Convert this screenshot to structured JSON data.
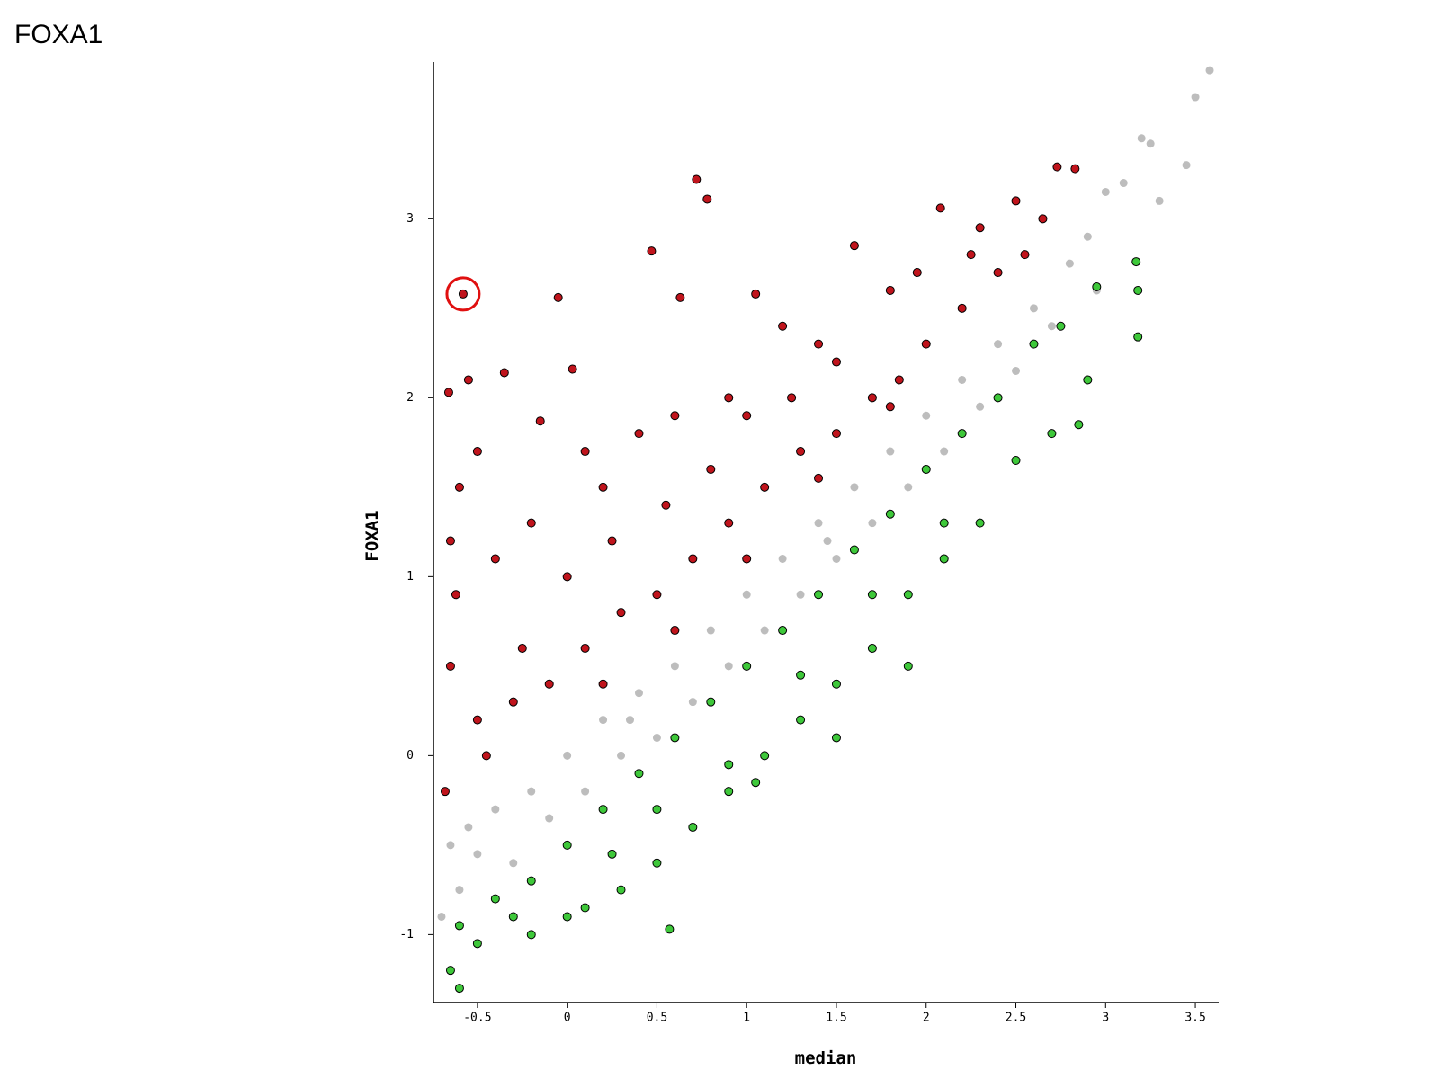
{
  "page_title": "FOXA1",
  "chart_data": {
    "type": "scatter",
    "xlabel": "median",
    "ylabel": "FOXA1",
    "xlim": [
      -0.745,
      3.63
    ],
    "ylim": [
      -1.38,
      3.876
    ],
    "xticks": [
      -0.5,
      0,
      0.5,
      1,
      1.5,
      2,
      2.5,
      3,
      3.5
    ],
    "yticks": [
      -1,
      0,
      1,
      2,
      3
    ],
    "series": [
      {
        "color": "#bdbdbd",
        "x": [
          -0.7,
          -0.65,
          -0.6,
          -0.5,
          -0.4,
          -0.3,
          -0.2,
          -0.1,
          0,
          0.1,
          0.2,
          0.3,
          0.4,
          0.5,
          0.6,
          0.7,
          0.8,
          0.9,
          1.0,
          1.1,
          1.2,
          1.3,
          1.4,
          1.5,
          1.6,
          1.7,
          1.8,
          1.9,
          2.0,
          2.1,
          2.2,
          2.3,
          2.4,
          2.5,
          2.6,
          2.7,
          2.8,
          2.9,
          3.0,
          3.1,
          3.2,
          3.3,
          3.45,
          3.5,
          3.58,
          3.25,
          2.95,
          0.35,
          1.45,
          -0.55
        ],
        "y": [
          -0.9,
          -0.5,
          -0.75,
          -0.55,
          -0.3,
          -0.6,
          -0.2,
          -0.35,
          0,
          -0.2,
          0.2,
          0,
          0.35,
          0.1,
          0.5,
          0.3,
          0.7,
          0.5,
          0.9,
          0.7,
          1.1,
          0.9,
          1.3,
          1.1,
          1.5,
          1.3,
          1.7,
          1.5,
          1.9,
          1.7,
          2.1,
          1.95,
          2.3,
          2.15,
          2.5,
          2.4,
          2.75,
          2.9,
          3.15,
          3.2,
          3.45,
          3.1,
          3.3,
          3.68,
          3.83,
          3.42,
          2.6,
          0.2,
          1.2,
          -0.4
        ]
      },
      {
        "color": "#c0141c",
        "x": [
          -0.58,
          0.72,
          0.78,
          0.47,
          -0.05,
          0.63,
          -0.35,
          -0.15,
          -0.55,
          -0.66,
          0.03,
          0.1,
          -0.5,
          -0.6,
          -0.65,
          0.2,
          0.4,
          0.6,
          0.9,
          1.05,
          1.2,
          1.6,
          1.5,
          1.8,
          2.08,
          2.3,
          2.5,
          2.65,
          2.73,
          2.83,
          2.4,
          2.2,
          2.0,
          1.85,
          1.7,
          1.5,
          1.3,
          1.1,
          0.9,
          0.7,
          0.5,
          0.3,
          0.1,
          -0.1,
          -0.3,
          -0.5,
          -0.65,
          -0.68,
          -0.62,
          -0.45,
          -0.25,
          0.0,
          0.25,
          0.55,
          0.8,
          1.0,
          1.25,
          1.4,
          1.95,
          2.25,
          2.55,
          0.2,
          0.6,
          1.0,
          1.4,
          1.8,
          -0.4,
          -0.2
        ],
        "y": [
          2.58,
          3.22,
          3.11,
          2.82,
          2.56,
          2.56,
          2.14,
          1.87,
          2.1,
          2.03,
          2.16,
          1.7,
          1.7,
          1.5,
          1.2,
          1.5,
          1.8,
          1.9,
          2.0,
          2.58,
          2.4,
          2.85,
          2.2,
          2.6,
          3.06,
          2.95,
          3.1,
          3.0,
          3.29,
          3.28,
          2.7,
          2.5,
          2.3,
          2.1,
          2.0,
          1.8,
          1.7,
          1.5,
          1.3,
          1.1,
          0.9,
          0.8,
          0.6,
          0.4,
          0.3,
          0.2,
          0.5,
          -0.2,
          0.9,
          0.0,
          0.6,
          1.0,
          1.2,
          1.4,
          1.6,
          1.9,
          2.0,
          2.3,
          2.7,
          2.8,
          2.8,
          0.4,
          0.7,
          1.1,
          1.55,
          1.95,
          1.1,
          1.3
        ]
      },
      {
        "color": "#3ec83a",
        "x": [
          0.57,
          -0.6,
          -0.65,
          -0.5,
          -0.3,
          -0.2,
          0,
          0.1,
          0.3,
          0.5,
          0.7,
          0.9,
          1.1,
          1.3,
          1.5,
          1.7,
          1.9,
          2.1,
          2.3,
          2.5,
          2.7,
          2.85,
          2.9,
          3.18,
          3.18,
          3.17,
          2.95,
          2.75,
          2.6,
          2.4,
          2.2,
          2.0,
          1.8,
          1.6,
          1.4,
          1.2,
          1.0,
          0.8,
          0.6,
          0.4,
          0.2,
          0.0,
          -0.2,
          -0.4,
          -0.6,
          0.9,
          1.3,
          1.7,
          2.1,
          0.5,
          0.25,
          1.5,
          1.9,
          1.05
        ],
        "y": [
          -0.97,
          -1.3,
          -1.2,
          -1.05,
          -0.9,
          -1.0,
          -0.9,
          -0.85,
          -0.75,
          -0.6,
          -0.4,
          -0.2,
          0,
          0.2,
          0.4,
          0.6,
          0.9,
          1.1,
          1.3,
          1.65,
          1.8,
          1.85,
          2.1,
          2.34,
          2.6,
          2.76,
          2.62,
          2.4,
          2.3,
          2.0,
          1.8,
          1.6,
          1.35,
          1.15,
          0.9,
          0.7,
          0.5,
          0.3,
          0.1,
          -0.1,
          -0.3,
          -0.5,
          -0.7,
          -0.8,
          -0.95,
          -0.05,
          0.45,
          0.9,
          1.3,
          -0.3,
          -0.55,
          0.1,
          0.5,
          -0.15
        ]
      }
    ]
  }
}
